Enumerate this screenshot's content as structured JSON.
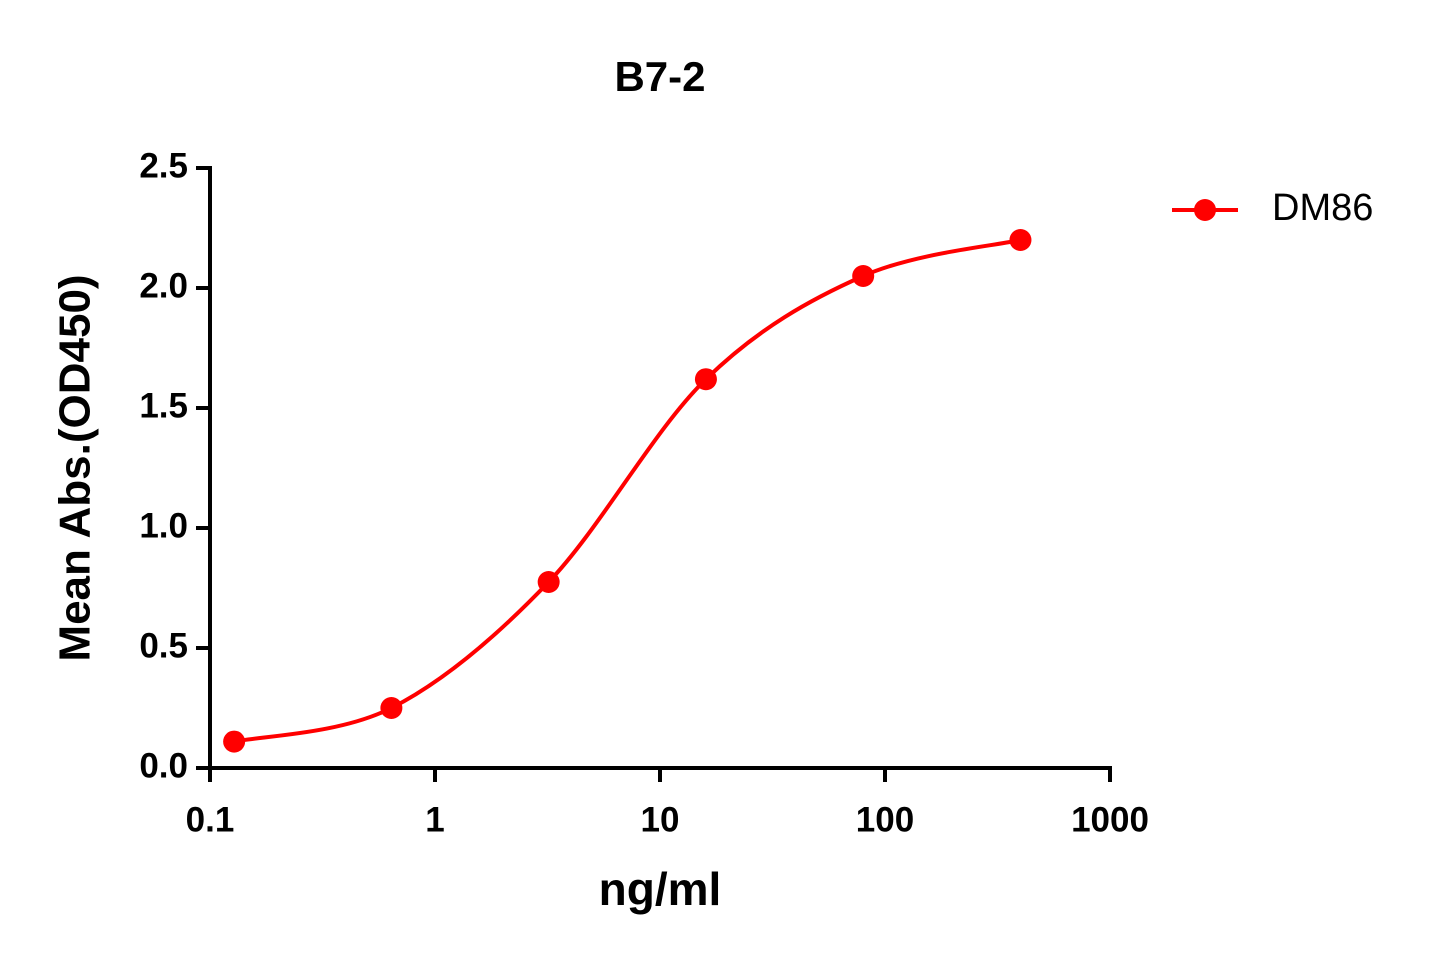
{
  "chart_data": {
    "type": "scatter",
    "title": "B7-2",
    "x_label": "ng/ml",
    "y_label": "Mean Abs.(OD450)",
    "x_scale": "log",
    "series": [
      {
        "name": "DM86",
        "color": "#ff0000",
        "x": [
          0.128,
          0.64,
          3.2,
          16,
          80,
          400
        ],
        "values": [
          0.11,
          0.25,
          0.775,
          1.62,
          2.05,
          2.2
        ]
      }
    ],
    "xlim": [
      0.1,
      1000
    ],
    "xticks": [
      0.1,
      1,
      10,
      100,
      1000
    ],
    "ylim": [
      0,
      2.5
    ],
    "yticks": [
      {
        "value": 0,
        "label": "0.0"
      },
      0.5,
      {
        "value": 1,
        "label": "1.0"
      },
      1.5,
      {
        "value": 2,
        "label": "2.0"
      },
      2.5
    ],
    "legend": "top-right",
    "grid": false
  }
}
